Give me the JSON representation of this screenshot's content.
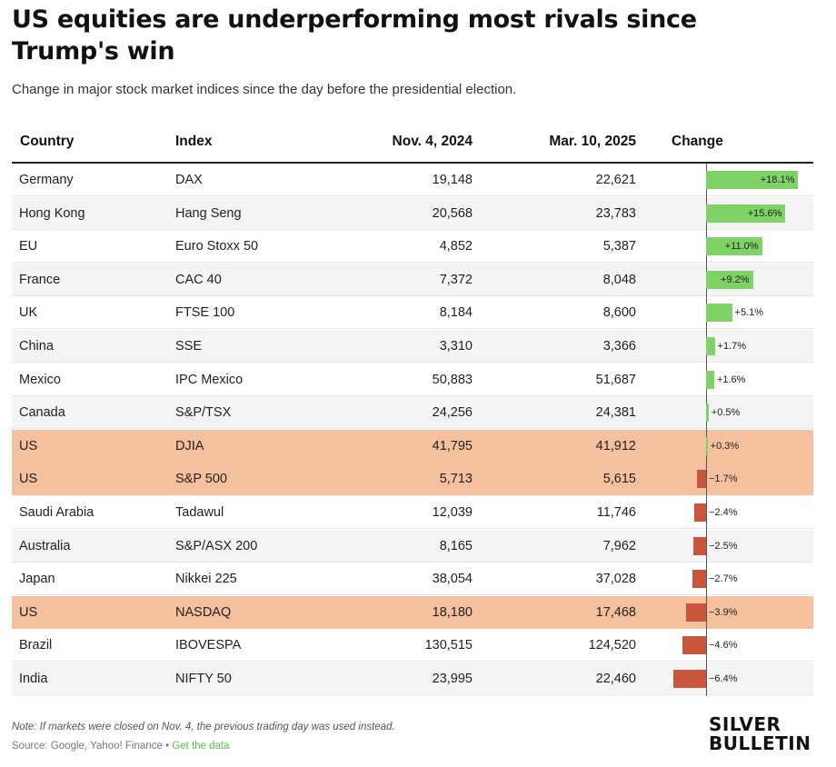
{
  "title": "US equities are underperforming most rivals since Trump's win",
  "subtitle": "Change in major stock market indices since the day before the presidential election.",
  "columns": {
    "country": "Country",
    "index": "Index",
    "nov": "Nov. 4, 2024",
    "mar": "Mar. 10, 2025",
    "change": "Change"
  },
  "rows": [
    {
      "country": "Germany",
      "index": "DAX",
      "nov": "19,148",
      "mar": "22,621",
      "change_label": "+18.1%",
      "highlight": false
    },
    {
      "country": "Hong Kong",
      "index": "Hang Seng",
      "nov": "20,568",
      "mar": "23,783",
      "change_label": "+15.6%",
      "highlight": false
    },
    {
      "country": "EU",
      "index": "Euro Stoxx 50",
      "nov": "4,852",
      "mar": "5,387",
      "change_label": "+11.0%",
      "highlight": false
    },
    {
      "country": "France",
      "index": "CAC 40",
      "nov": "7,372",
      "mar": "8,048",
      "change_label": "+9.2%",
      "highlight": false
    },
    {
      "country": "UK",
      "index": "FTSE 100",
      "nov": "8,184",
      "mar": "8,600",
      "change_label": "+5.1%",
      "highlight": false
    },
    {
      "country": "China",
      "index": "SSE",
      "nov": "3,310",
      "mar": "3,366",
      "change_label": "+1.7%",
      "highlight": false
    },
    {
      "country": "Mexico",
      "index": "IPC Mexico",
      "nov": "50,883",
      "mar": "51,687",
      "change_label": "+1.6%",
      "highlight": false
    },
    {
      "country": "Canada",
      "index": "S&P/TSX",
      "nov": "24,256",
      "mar": "24,381",
      "change_label": "+0.5%",
      "highlight": false
    },
    {
      "country": "US",
      "index": "DJIA",
      "nov": "41,795",
      "mar": "41,912",
      "change_label": "+0.3%",
      "highlight": true
    },
    {
      "country": "US",
      "index": "S&P 500",
      "nov": "5,713",
      "mar": "5,615",
      "change_label": "−1.7%",
      "highlight": true
    },
    {
      "country": "Saudi Arabia",
      "index": "Tadawul",
      "nov": "12,039",
      "mar": "11,746",
      "change_label": "−2.4%",
      "highlight": false
    },
    {
      "country": "Australia",
      "index": "S&P/ASX 200",
      "nov": "8,165",
      "mar": "7,962",
      "change_label": "−2.5%",
      "highlight": false
    },
    {
      "country": "Japan",
      "index": "Nikkei 225",
      "nov": "38,054",
      "mar": "37,028",
      "change_label": "−2.7%",
      "highlight": false
    },
    {
      "country": "US",
      "index": "NASDAQ",
      "nov": "18,180",
      "mar": "17,468",
      "change_label": "−3.9%",
      "highlight": true
    },
    {
      "country": "Brazil",
      "index": "IBOVESPA",
      "nov": "130,515",
      "mar": "124,520",
      "change_label": "−4.6%",
      "highlight": false
    },
    {
      "country": "India",
      "index": "NIFTY 50",
      "nov": "23,995",
      "mar": "22,460",
      "change_label": "−6.4%",
      "highlight": false
    }
  ],
  "chart_data": {
    "type": "table",
    "title": "US equities are underperforming most rivals since Trump's win",
    "subtitle": "Change in major stock market indices since the day before the presidential election.",
    "categories": [
      "Germany DAX",
      "Hong Kong Hang Seng",
      "EU Euro Stoxx 50",
      "France CAC 40",
      "UK FTSE 100",
      "China SSE",
      "Mexico IPC Mexico",
      "Canada S&P/TSX",
      "US DJIA",
      "US S&P 500",
      "Saudi Arabia Tadawul",
      "Australia S&P/ASX 200",
      "Japan Nikkei 225",
      "US NASDAQ",
      "Brazil IBOVESPA",
      "India NIFTY 50"
    ],
    "series": [
      {
        "name": "Change",
        "values": [
          18.1,
          15.6,
          11.0,
          9.2,
          5.1,
          1.7,
          1.6,
          0.5,
          0.3,
          -1.7,
          -2.4,
          -2.5,
          -2.7,
          -3.9,
          -4.6,
          -6.4
        ]
      }
    ],
    "nov_values": [
      19148,
      20568,
      4852,
      7372,
      8184,
      3310,
      50883,
      24256,
      41795,
      5713,
      12039,
      8165,
      38054,
      18180,
      130515,
      23995
    ],
    "mar_values": [
      22621,
      23783,
      5387,
      8048,
      8600,
      3366,
      51687,
      24381,
      41912,
      5615,
      11746,
      7962,
      37028,
      17468,
      124520,
      22460
    ],
    "colors": {
      "positive": "#7ed266",
      "negative": "#c9553c",
      "us_highlight": "#f5c09e"
    }
  },
  "footer": {
    "note": "Note: If markets were closed on Nov. 4, the previous trading day was used instead.",
    "source": "Source: Google, Yahoo! Finance",
    "separator": " • ",
    "get_data": "Get the data",
    "logo_line1": "SILVER",
    "logo_line2": "BULLETIN"
  }
}
